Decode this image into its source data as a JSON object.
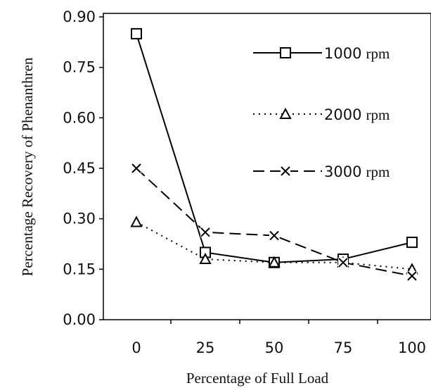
{
  "chart_data": {
    "type": "line",
    "title": "",
    "xlabel": "Percentage of Full Load",
    "ylabel": "Percentage Recovery of  Phenanthren",
    "x": [
      0,
      25,
      50,
      75,
      100
    ],
    "x_tick_labels": [
      "0",
      "25",
      "50",
      "75",
      "100"
    ],
    "y_tick_labels": [
      "0.00",
      "0.15",
      "0.30",
      "0.45",
      "0.60",
      "0.75",
      "0.90"
    ],
    "ylim": [
      0,
      0.9
    ],
    "grid": false,
    "legend_position": "top-right",
    "series": [
      {
        "name": "1000",
        "unit": "rpm",
        "values": [
          0.85,
          0.2,
          0.17,
          0.18,
          0.23
        ],
        "marker": "square",
        "line_style": "solid",
        "color": "#000000"
      },
      {
        "name": "2000",
        "unit": "rpm",
        "values": [
          0.29,
          0.18,
          0.17,
          0.17,
          0.15
        ],
        "marker": "triangle",
        "line_style": "dotted",
        "color": "#000000"
      },
      {
        "name": "3000",
        "unit": "rpm",
        "values": [
          0.45,
          0.26,
          0.25,
          0.17,
          0.13
        ],
        "marker": "x-box",
        "line_style": "dashed",
        "color": "#000000"
      }
    ]
  }
}
